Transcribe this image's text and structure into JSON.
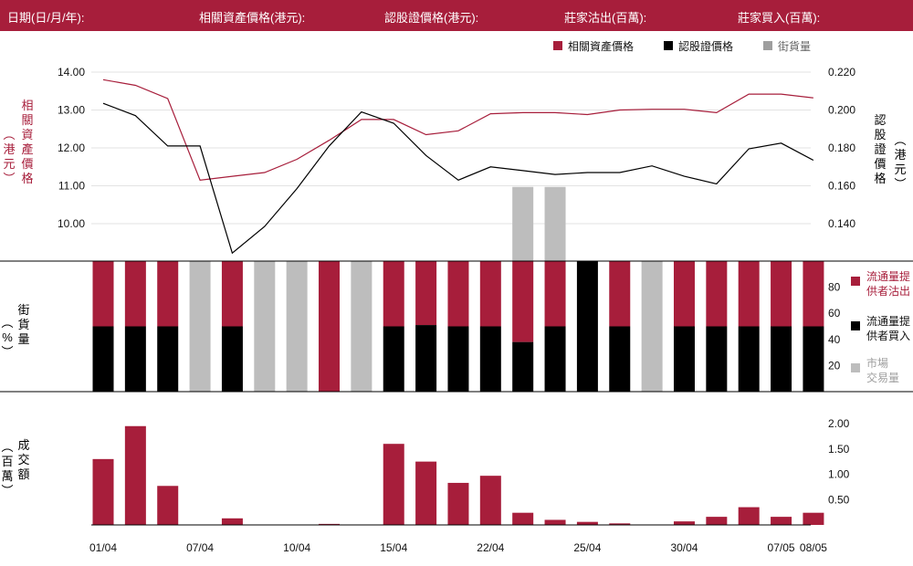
{
  "header": {
    "date_label": "日期(日/月/年):",
    "asset_label": "相關資產價格(港元):",
    "warrant_label": "認股證價格(港元):",
    "sell_label": "莊家沽出(百萬):",
    "buy_label": "莊家買入(百萬):"
  },
  "colors": {
    "crimson": "#a71e3b",
    "black": "#000000",
    "gray": "#bdbdbd"
  },
  "chart_data": [
    {
      "type": "line",
      "legend": [
        {
          "name": "相關資產價格",
          "color": "#a71e3b"
        },
        {
          "name": "認股證價格",
          "color": "#000000"
        },
        {
          "name": "街貨量",
          "color": "#9e9e9e"
        }
      ],
      "legend_position": "top-right",
      "y_left": {
        "label": "相關資產價格（港元）",
        "ticks": [
          "14.00",
          "13.00",
          "12.00",
          "11.00",
          "10.00"
        ],
        "range": [
          9.0,
          14.0
        ]
      },
      "y_right": {
        "label": "認股證價格（港元）",
        "ticks": [
          "0.220",
          "0.200",
          "0.180",
          "0.160",
          "0.140"
        ],
        "range": [
          0.12,
          0.22
        ]
      },
      "series": [
        {
          "name": "相關資產價格",
          "axis": "left",
          "values": [
            13.8,
            13.65,
            13.3,
            11.15,
            11.25,
            11.35,
            11.7,
            12.2,
            12.75,
            12.75,
            12.35,
            12.45,
            12.9,
            12.93,
            12.93,
            12.88,
            13.0,
            13.02,
            13.02,
            12.93,
            13.42,
            13.42,
            13.32
          ]
        },
        {
          "name": "認股證價格",
          "axis": "right",
          "values": [
            0.2035,
            0.197,
            0.181,
            0.181,
            0.1245,
            0.1385,
            0.1585,
            0.181,
            0.199,
            0.193,
            0.176,
            0.163,
            0.17,
            0.168,
            0.166,
            0.167,
            0.167,
            0.1705,
            0.165,
            0.161,
            0.1795,
            0.1825,
            0.1735
          ]
        }
      ],
      "street_stock": [
        0,
        0,
        0,
        0,
        0,
        0,
        0,
        0,
        0,
        0,
        0,
        0,
        0,
        0.43,
        0.43,
        0,
        0,
        0,
        0,
        0,
        0,
        0,
        0
      ]
    },
    {
      "type": "bar",
      "y_label": "街貨量（%）",
      "ticks": [
        "80",
        "60",
        "40",
        "20"
      ],
      "ylim": [
        0,
        100
      ],
      "legend": [
        {
          "name": "流通量提供者沽出",
          "color": "#a71e3b"
        },
        {
          "name": "流通量提供者買入",
          "color": "#000000"
        },
        {
          "name": "市場交易量",
          "color": "#bdbdbd"
        }
      ],
      "bars": [
        {
          "kind": "split",
          "buy": 50
        },
        {
          "kind": "split",
          "buy": 50
        },
        {
          "kind": "split",
          "buy": 50
        },
        {
          "kind": "market"
        },
        {
          "kind": "split",
          "buy": 50
        },
        {
          "kind": "market"
        },
        {
          "kind": "market"
        },
        {
          "kind": "sell"
        },
        {
          "kind": "market"
        },
        {
          "kind": "split",
          "buy": 50
        },
        {
          "kind": "split",
          "buy": 51
        },
        {
          "kind": "split",
          "buy": 50
        },
        {
          "kind": "split",
          "buy": 50
        },
        {
          "kind": "split",
          "buy": 38
        },
        {
          "kind": "split",
          "buy": 50
        },
        {
          "kind": "buy"
        },
        {
          "kind": "split",
          "buy": 50
        },
        {
          "kind": "market"
        },
        {
          "kind": "split",
          "buy": 50
        },
        {
          "kind": "split",
          "buy": 50
        },
        {
          "kind": "split",
          "buy": 50
        },
        {
          "kind": "split",
          "buy": 50
        },
        {
          "kind": "split",
          "buy": 50
        }
      ]
    },
    {
      "type": "bar",
      "y_label": "成交額（百萬）",
      "ticks": [
        "2.00",
        "1.50",
        "1.00",
        "0.50"
      ],
      "ylim": [
        0,
        2.0
      ],
      "values": [
        1.3,
        1.95,
        0.77,
        0,
        0.13,
        0,
        0,
        0.02,
        0,
        1.6,
        1.25,
        0.83,
        0.97,
        0.24,
        0.1,
        0.06,
        0.03,
        0,
        0.07,
        0.16,
        0.35,
        0.16,
        0.24
      ]
    }
  ],
  "x_ticks": [
    {
      "label": "01/04",
      "index": 0
    },
    {
      "label": "07/04",
      "index": 3
    },
    {
      "label": "10/04",
      "index": 6
    },
    {
      "label": "15/04",
      "index": 9
    },
    {
      "label": "22/04",
      "index": 12
    },
    {
      "label": "25/04",
      "index": 15
    },
    {
      "label": "30/04",
      "index": 18
    },
    {
      "label": "07/05",
      "index": 21
    },
    {
      "label": "08/05",
      "index": 22
    }
  ],
  "labels": {
    "asset_axis": "相關資產價格",
    "asset_unit": "港元",
    "warrant_axis": "認股證價格",
    "warrant_unit": "港元",
    "street_axis": "街貨量",
    "street_unit": "%",
    "turnover_axis": "成交額",
    "turnover_unit": "百萬",
    "legend_sell_line1": "流通量提",
    "legend_sell_line2": "供者沽出",
    "legend_buy_line1": "流通量提",
    "legend_buy_line2": "供者買入",
    "legend_market_line1": "市場",
    "legend_market_line2": "交易量"
  }
}
